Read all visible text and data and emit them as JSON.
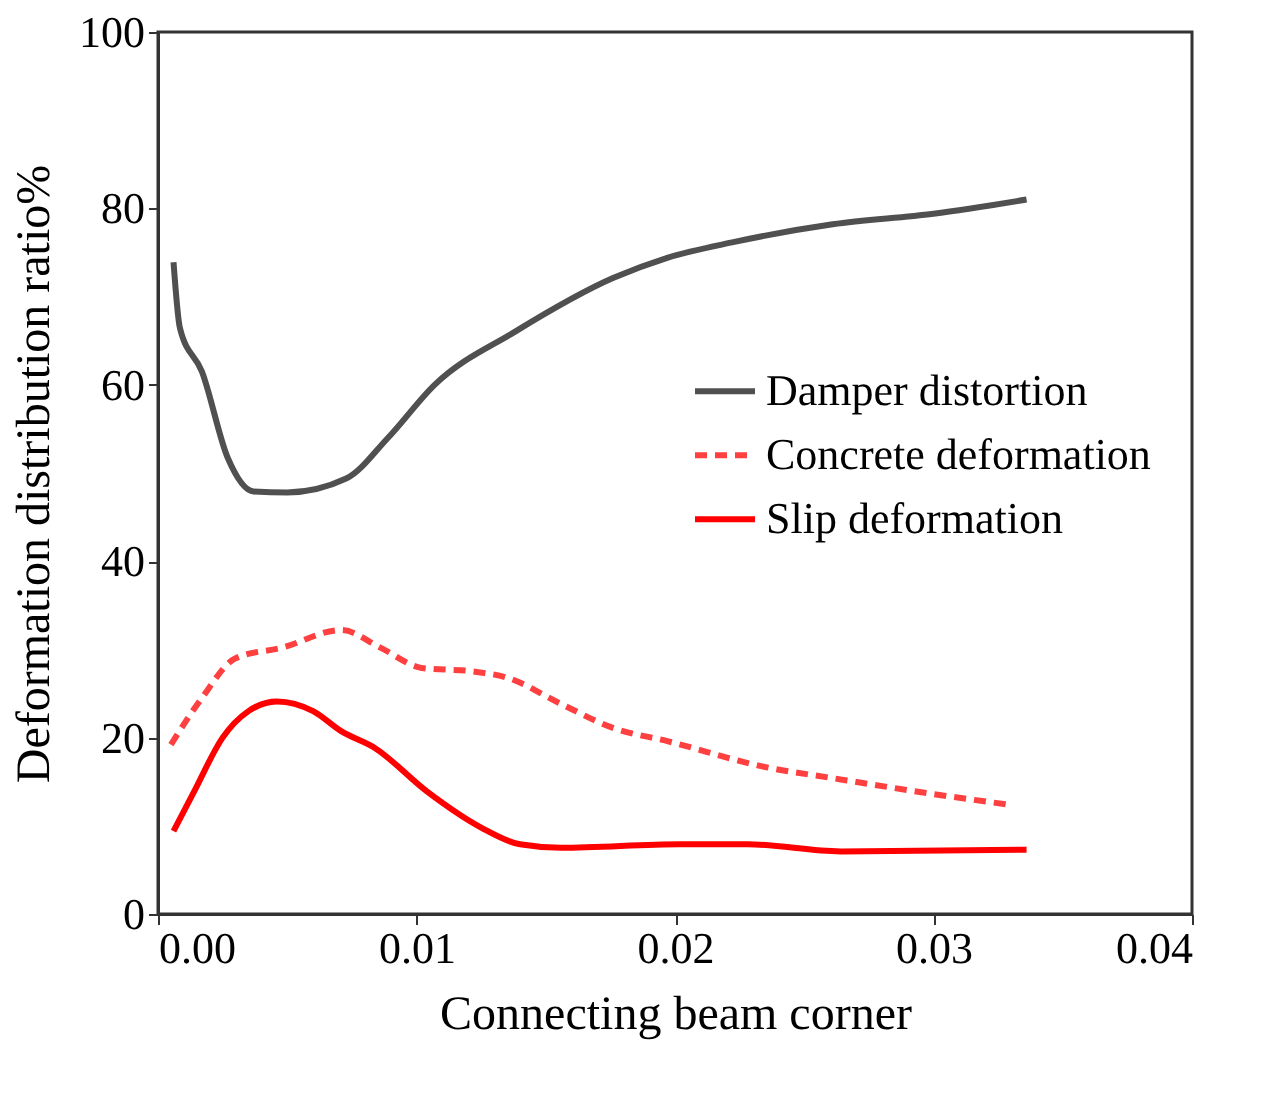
{
  "chart_data": {
    "type": "line",
    "xlabel": "Connecting beam corner",
    "ylabel": "Deformation distribution ratio%",
    "xlim": [
      0,
      0.04
    ],
    "xticks": [
      {
        "value": 0,
        "label": "0.00"
      },
      0.01,
      0.02,
      0.03,
      0.04
    ],
    "ylim": [
      0,
      100
    ],
    "yticks": [
      0,
      20,
      40,
      60,
      80,
      100
    ],
    "grid": false,
    "legend": "right",
    "marker": "none",
    "series": [
      {
        "name": "Damper distortion",
        "color": "#505050",
        "line_style": "solid",
        "x": [
          0.0006,
          0.00085,
          0.0017,
          0.0027,
          0.0037,
          0.005,
          0.0073,
          0.0089,
          0.0107,
          0.0138,
          0.0176,
          0.0197,
          0.0223,
          0.0261,
          0.03,
          0.0336
        ],
        "values": [
          73.9,
          66.4,
          61.5,
          51.7,
          47.9,
          47.8,
          49.4,
          54,
          60,
          66,
          72.1,
          74.4,
          76.2,
          78.2,
          79.4,
          81
        ]
      },
      {
        "name": "Concrete deformation",
        "color": "#ff4040",
        "line_style": "dashed",
        "x": [
          0.0005,
          0.0017,
          0.003,
          0.0048,
          0.0071,
          0.0086,
          0.0102,
          0.0122,
          0.0135,
          0.0156,
          0.0176,
          0.0197,
          0.0236,
          0.0261,
          0.03,
          0.0329
        ],
        "values": [
          19.2,
          24.5,
          29,
          30.2,
          32.2,
          30.2,
          27.9,
          27.5,
          26.8,
          23.8,
          21.1,
          19.6,
          16.6,
          15.4,
          13.6,
          12.4
        ]
      },
      {
        "name": "Slip deformation",
        "color": "#ff0000",
        "line_style": "solid",
        "x": [
          0.0006,
          0.0014,
          0.0025,
          0.0035,
          0.0046,
          0.006,
          0.0071,
          0.0084,
          0.0104,
          0.0125,
          0.014,
          0.0156,
          0.0202,
          0.0228,
          0.0264,
          0.0336
        ],
        "values": [
          9.4,
          13.9,
          20,
          23,
          24.1,
          23,
          20.7,
          18.8,
          13.9,
          9.8,
          7.9,
          7.5,
          7.9,
          7.9,
          7.1,
          7.3
        ]
      }
    ]
  }
}
